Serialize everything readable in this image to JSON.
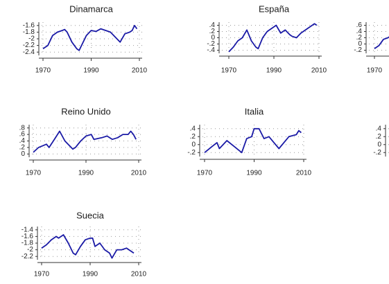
{
  "chart_data": [
    {
      "type": "line",
      "title": "Dinamarca",
      "x": [
        1970,
        1972,
        1974,
        1976,
        1978,
        1979,
        1980,
        1982,
        1984,
        1985,
        1986,
        1988,
        1990,
        1992,
        1994,
        1996,
        1998,
        2000,
        2002,
        2004,
        2006,
        2007,
        2008,
        2009
      ],
      "values": [
        -2.3,
        -2.2,
        -1.9,
        -1.8,
        -1.75,
        -1.72,
        -1.8,
        -2.1,
        -2.3,
        -2.35,
        -2.2,
        -1.9,
        -1.75,
        -1.78,
        -1.7,
        -1.75,
        -1.8,
        -1.95,
        -2.1,
        -1.85,
        -1.8,
        -1.75,
        -1.6,
        -1.7
      ],
      "color": "#1a1aa6",
      "xlim": [
        1970,
        2010
      ],
      "xticks": [
        1970,
        1990,
        2010
      ],
      "ylim": [
        -2.5,
        -1.5
      ],
      "yticks": [
        -1.6,
        -1.8,
        -2,
        -2.2,
        -2.4
      ],
      "grid": true
    },
    {
      "type": "line",
      "title": "España",
      "x": [
        1970,
        1972,
        1974,
        1976,
        1978,
        1980,
        1982,
        1983,
        1985,
        1987,
        1989,
        1991,
        1993,
        1995,
        1997,
        1998,
        2000,
        2002,
        2004,
        2006,
        2008,
        2009
      ],
      "values": [
        -0.45,
        -0.3,
        -0.1,
        0,
        0.25,
        -0.1,
        -0.3,
        -0.35,
        0,
        0.2,
        0.3,
        0.4,
        0.15,
        0.25,
        0.1,
        0.05,
        0,
        0.15,
        0.25,
        0.35,
        0.45,
        0.4
      ],
      "color": "#1a1aa6",
      "xlim": [
        1970,
        2010
      ],
      "xticks": [
        1970,
        1990,
        2010
      ],
      "ylim": [
        -0.5,
        0.5
      ],
      "yticks": [
        0.4,
        0.2,
        0,
        -0.2,
        -0.4
      ],
      "grid": true
    },
    {
      "type": "line",
      "x": [
        1970,
        1972,
        1974,
        1976,
        1978,
        1980
      ],
      "values": [
        -0.15,
        -0.05,
        0.15,
        0.2,
        0.3,
        0.25
      ],
      "color": "#1a1aa6",
      "xlim": [
        1970,
        2010
      ],
      "xticks": [
        1970
      ],
      "ylim": [
        -0.3,
        0.7
      ],
      "yticks": [
        0.6,
        0.4,
        0.2,
        0,
        -0.2
      ],
      "grid": true
    },
    {
      "type": "line",
      "title": "Reino Unido",
      "x": [
        1970,
        1972,
        1975,
        1976,
        1978,
        1980,
        1982,
        1985,
        1986,
        1988,
        1990,
        1992,
        1993,
        1996,
        1998,
        2000,
        2002,
        2004,
        2006,
        2007,
        2008,
        2009
      ],
      "values": [
        0.05,
        0.2,
        0.3,
        0.2,
        0.45,
        0.7,
        0.4,
        0.15,
        0.2,
        0.4,
        0.55,
        0.6,
        0.45,
        0.5,
        0.55,
        0.45,
        0.5,
        0.6,
        0.6,
        0.7,
        0.6,
        0.45
      ],
      "color": "#1a1aa6",
      "xlim": [
        1970,
        2010
      ],
      "xticks": [
        1970,
        1990,
        2010
      ],
      "ylim": [
        -0.1,
        0.9
      ],
      "yticks": [
        0.8,
        0.6,
        0.4,
        0.2,
        0
      ],
      "grid": true
    },
    {
      "type": "line",
      "title": "Italia",
      "x": [
        1970,
        1973,
        1975,
        1976,
        1979,
        1982,
        1985,
        1987,
        1989,
        1990,
        1992,
        1994,
        1996,
        1998,
        2000,
        2002,
        2004,
        2007,
        2008,
        2009
      ],
      "values": [
        -0.2,
        -0.05,
        0.05,
        -0.1,
        0.1,
        -0.05,
        -0.2,
        0.15,
        0.2,
        0.4,
        0.4,
        0.15,
        0.2,
        0.05,
        -0.1,
        0.05,
        0.2,
        0.25,
        0.35,
        0.3
      ],
      "color": "#1a1aa6",
      "xlim": [
        1970,
        2010
      ],
      "xticks": [
        1970,
        1990,
        2010
      ],
      "ylim": [
        -0.3,
        0.5
      ],
      "yticks": [
        0.4,
        0.2,
        0,
        -0.2
      ],
      "grid": true
    },
    {
      "type": "line",
      "color": "#1a1aa6",
      "ylim": [
        -0.3,
        0.5
      ],
      "yticks": [
        0.4,
        0.2,
        0,
        -0.2
      ],
      "grid": true
    },
    {
      "type": "line",
      "title": "Suecia",
      "x": [
        1970,
        1972,
        1974,
        1976,
        1977,
        1979,
        1981,
        1983,
        1984,
        1986,
        1988,
        1990,
        1991,
        1992,
        1994,
        1996,
        1998,
        1999,
        2001,
        2003,
        2005,
        2007,
        2008
      ],
      "values": [
        -1.95,
        -1.85,
        -1.7,
        -1.6,
        -1.65,
        -1.55,
        -1.8,
        -2.1,
        -2.15,
        -1.9,
        -1.7,
        -1.65,
        -1.65,
        -1.9,
        -1.8,
        -2,
        -2.1,
        -2.25,
        -2,
        -2,
        -1.95,
        -2.05,
        -2.1
      ],
      "color": "#1a1aa6",
      "xlim": [
        1970,
        2010
      ],
      "xticks": [
        1970,
        1990,
        2010
      ],
      "ylim": [
        -2.3,
        -1.3
      ],
      "yticks": [
        -1.4,
        -1.6,
        -1.8,
        -2,
        -2.2
      ],
      "grid": true
    }
  ]
}
